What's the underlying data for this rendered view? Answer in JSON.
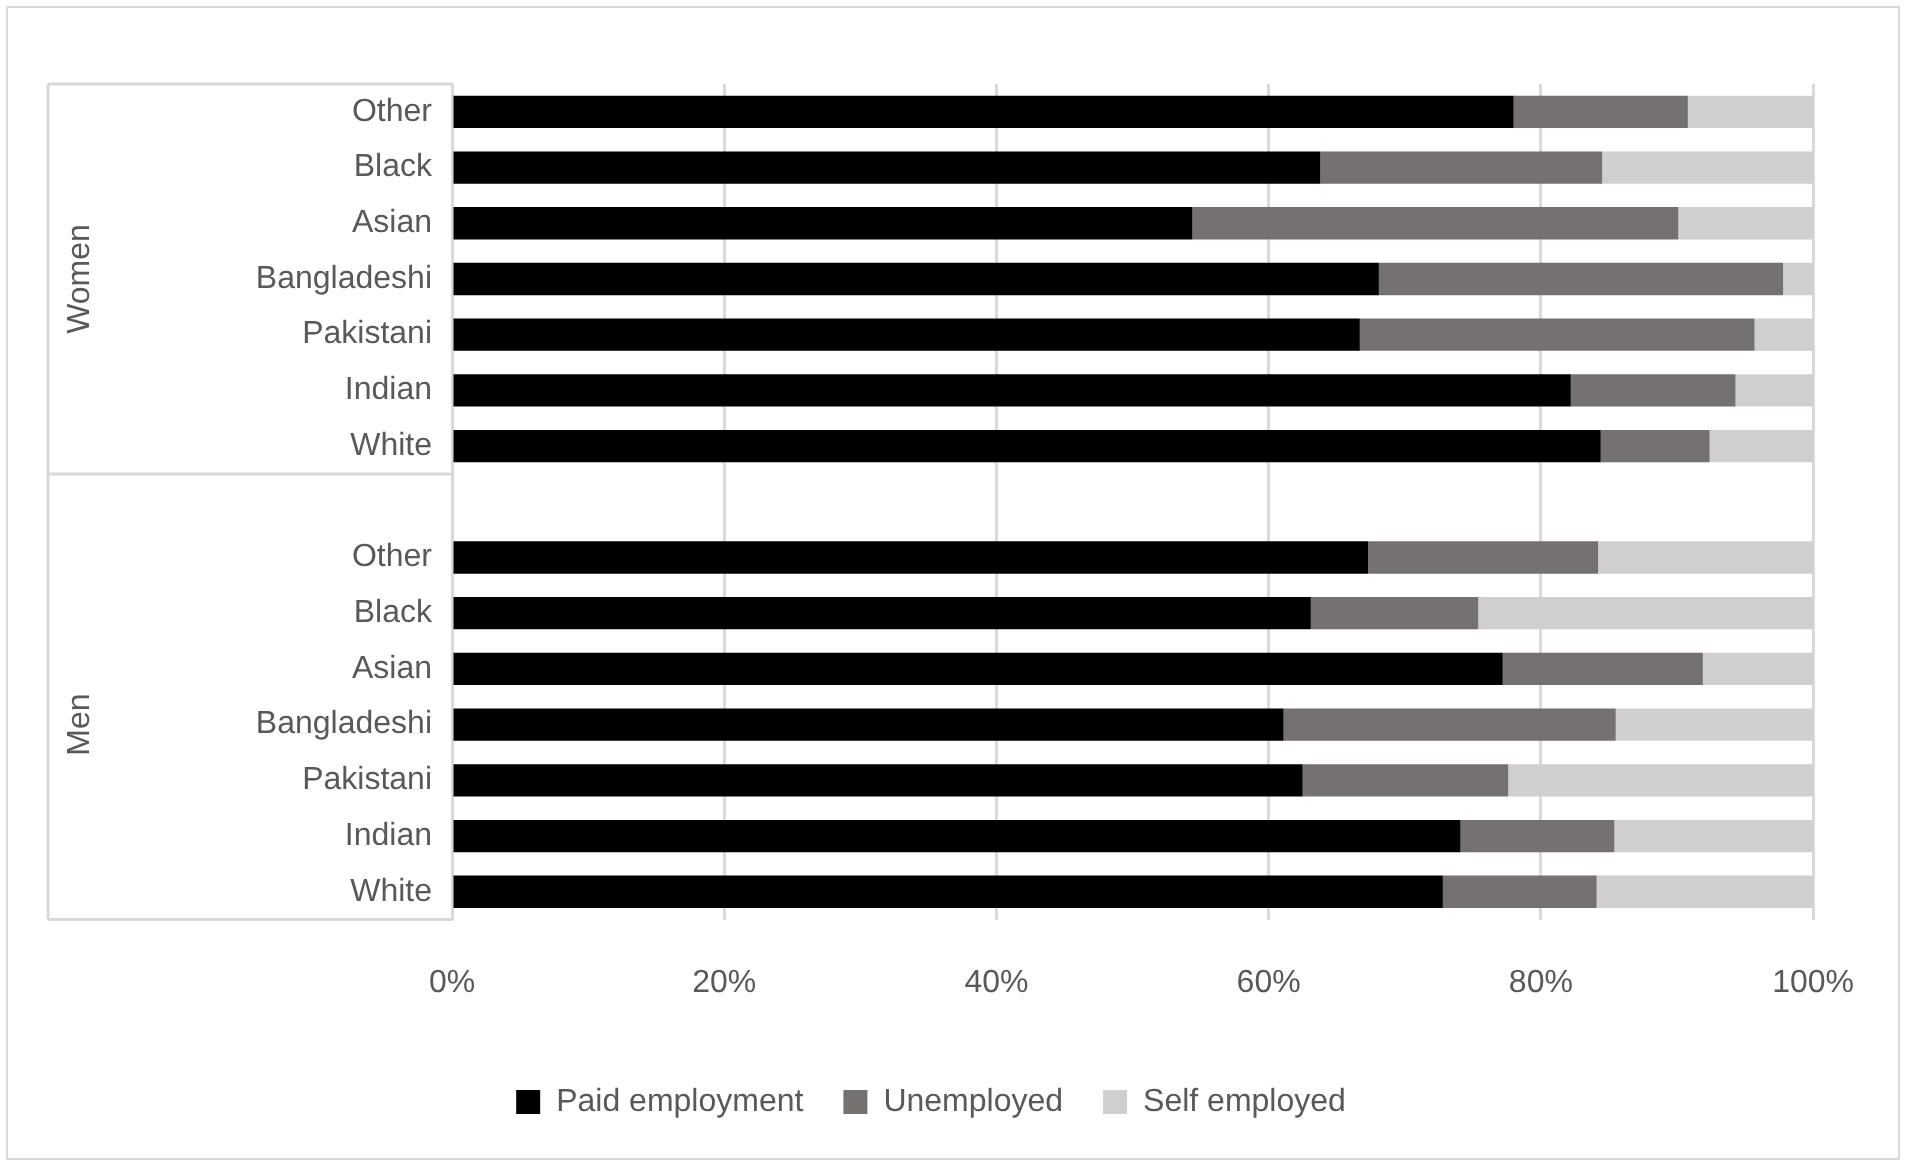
{
  "chart_data": {
    "type": "bar",
    "orientation": "horizontal",
    "stacked": true,
    "categories": [
      "Other",
      "Black",
      "Asian",
      "Bangladeshi",
      "Pakistani",
      "Indian",
      "White",
      null,
      "Other",
      "Black",
      "Asian",
      "Bangladeshi",
      "Pakistani",
      "Indian",
      "White"
    ],
    "series": [
      {
        "name": "Paid employment",
        "color": "#000000",
        "values": [
          78,
          63.8,
          54.4,
          68.1,
          66.7,
          82.2,
          84.4,
          null,
          67.3,
          63.1,
          77.2,
          61.1,
          62.5,
          74.1,
          72.8
        ]
      },
      {
        "name": "Unemployed",
        "color": "#767171",
        "values": [
          12.8,
          20.7,
          35.7,
          29.7,
          29,
          12.1,
          8,
          null,
          16.9,
          12.3,
          14.7,
          24.4,
          15.1,
          11.3,
          11.3
        ]
      },
      {
        "name": "Self employed",
        "color": "#d0cece",
        "values": [
          9.2,
          15.5,
          9.9,
          2.2,
          4.3,
          5.7,
          7.6,
          null,
          15.8,
          24.6,
          8.1,
          14.5,
          22.4,
          14.6,
          15.9
        ]
      }
    ],
    "xlim": [
      0,
      100
    ],
    "xticks": [
      {
        "value": 0,
        "label": "0%"
      },
      {
        "value": 20,
        "label": "20%"
      },
      {
        "value": 40,
        "label": "40%"
      },
      {
        "value": 60,
        "label": "60%"
      },
      {
        "value": 80,
        "label": "80%"
      },
      {
        "value": 100,
        "label": "100%"
      }
    ],
    "annotations": [
      "Women",
      "Men"
    ],
    "grid": "x",
    "legend": "bottom"
  }
}
